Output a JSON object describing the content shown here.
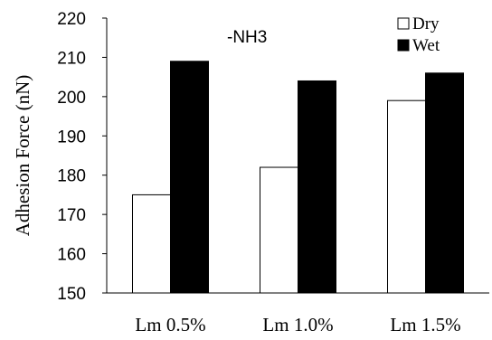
{
  "chart_data": {
    "type": "bar",
    "categories": [
      "Lm 0.5%",
      "Lm 1.0%",
      "Lm 1.5%"
    ],
    "series": [
      {
        "name": "Dry",
        "values": [
          175,
          182,
          199
        ],
        "fill": "#ffffff",
        "stroke": "#000000"
      },
      {
        "name": "Wet",
        "values": [
          209,
          204,
          206
        ],
        "fill": "#000000",
        "stroke": "#000000"
      }
    ],
    "ylabel": "Adhesion Force (nN)",
    "ylim": [
      150,
      220
    ],
    "yticks": [
      150,
      160,
      170,
      180,
      190,
      200,
      210,
      220
    ],
    "annotation": "-NH3",
    "legend_position": "top-right",
    "grid": false
  }
}
